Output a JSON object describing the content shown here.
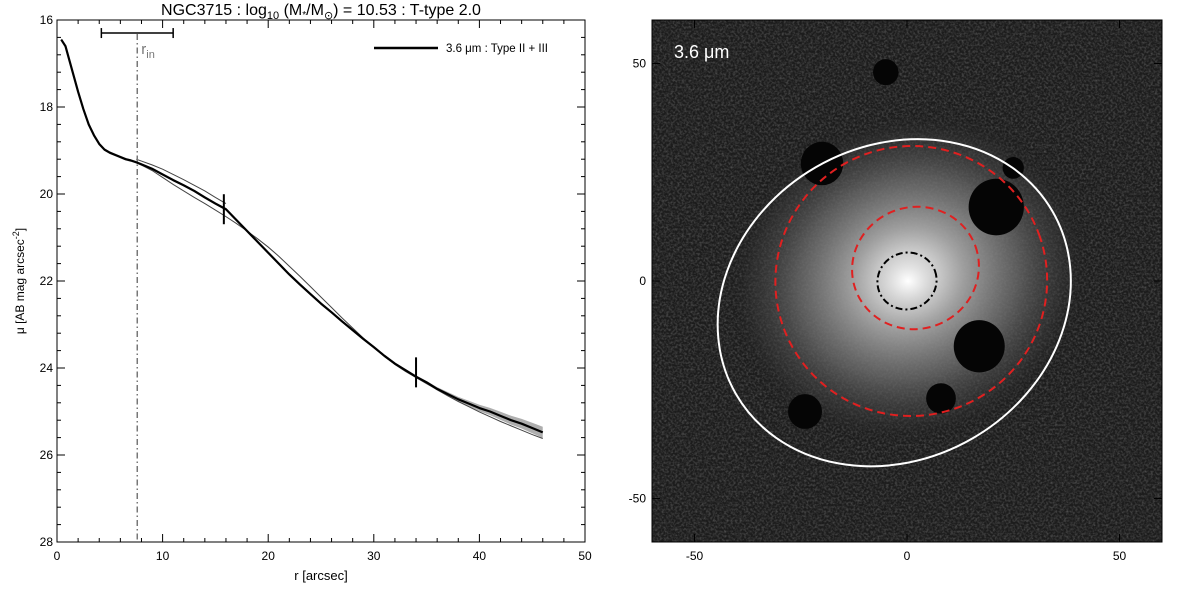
{
  "chart_data": [
    {
      "type": "line",
      "title_parts": [
        "NGC3715 : log",
        "10",
        " (M",
        "*",
        "/M",
        "⊙",
        ") = 10.53 : T-type 2.0"
      ],
      "xlabel": "r [arcsec]",
      "ylabel": "μ [AB mag arcsec",
      "ylabel_sup": "-2",
      "ylabel_end": "]",
      "xlim": [
        0,
        50
      ],
      "ylim": [
        28,
        16
      ],
      "y_inverted": true,
      "grid": false,
      "xticks": [
        0,
        10,
        20,
        30,
        40,
        50
      ],
      "xtick_labels": [
        "0",
        "10",
        "20",
        "30",
        "40",
        "50"
      ],
      "yticks": [
        16,
        18,
        20,
        22,
        24,
        26,
        28
      ],
      "ytick_labels": [
        "16",
        "18",
        "20",
        "22",
        "24",
        "26",
        "28"
      ],
      "legend": {
        "placement": "top-right",
        "label": "3.6 μm : Type II + III"
      },
      "series": [
        {
          "name": "3.6 μm : Type II + III",
          "x": [
            0.4,
            0.8,
            1.2,
            1.6,
            2.0,
            2.5,
            3.0,
            3.5,
            4.0,
            4.5,
            5.0,
            5.5,
            6.0,
            6.5,
            7.0,
            7.5,
            8.0,
            9.0,
            10.0,
            11.0,
            12.0,
            13.0,
            14.0,
            15.0,
            16.0,
            17.0,
            18.0,
            19.0,
            20.0,
            21.0,
            22.0,
            23.0,
            24.0,
            25.0,
            26.0,
            27.0,
            28.0,
            29.0,
            30.0,
            31.0,
            32.0,
            33.0,
            34.0,
            35.0,
            36.0,
            37.0,
            38.0,
            39.0,
            40.0,
            41.0,
            42.0,
            43.0,
            44.0,
            45.0,
            46.0
          ],
          "y": [
            16.45,
            16.6,
            16.95,
            17.3,
            17.65,
            18.05,
            18.4,
            18.65,
            18.85,
            18.98,
            19.05,
            19.1,
            19.15,
            19.2,
            19.23,
            19.27,
            19.32,
            19.42,
            19.55,
            19.68,
            19.8,
            19.93,
            20.08,
            20.22,
            20.35,
            20.6,
            20.85,
            21.1,
            21.35,
            21.6,
            21.85,
            22.08,
            22.3,
            22.52,
            22.72,
            22.93,
            23.13,
            23.33,
            23.52,
            23.72,
            23.9,
            24.05,
            24.2,
            24.33,
            24.48,
            24.6,
            24.72,
            24.82,
            24.92,
            25.0,
            25.1,
            25.2,
            25.28,
            25.38,
            25.48
          ]
        },
        {
          "name": "",
          "x": [
            7.5,
            9.0,
            10.0,
            11.0,
            12.0,
            13.0,
            14.0,
            15.0,
            16.0,
            17.0,
            18.0,
            19.0,
            20.0,
            21.0,
            22.0,
            23.0,
            24.0,
            25.0,
            26.0,
            27.0,
            28.0,
            29.0,
            30.0,
            31.0,
            32.0,
            33.0,
            34.0,
            35.0,
            36.0,
            37.0,
            38.0,
            39.0,
            40.0,
            41.0,
            42.0,
            43.0,
            44.0,
            45.0,
            46.0
          ],
          "y": [
            19.27,
            19.46,
            19.62,
            19.78,
            19.93,
            20.08,
            20.22,
            20.37,
            20.52,
            20.68,
            20.85,
            21.03,
            21.22,
            21.43,
            21.66,
            21.89,
            22.13,
            22.37,
            22.61,
            22.85,
            23.08,
            23.31,
            23.53,
            23.73,
            23.92,
            24.08,
            24.22,
            24.36,
            24.5,
            24.64,
            24.77,
            24.89,
            25.01,
            25.12,
            25.23,
            25.33,
            25.43,
            25.53,
            25.62
          ]
        },
        {
          "name": "",
          "x": [
            7.5,
            9.0,
            10.0,
            11.0,
            12.0,
            13.0,
            14.0,
            15.0,
            16.0
          ],
          "y": [
            19.2,
            19.33,
            19.43,
            19.55,
            19.67,
            19.8,
            19.93,
            20.08,
            20.22
          ]
        }
      ],
      "markers": [
        {
          "type": "vline",
          "x": 7.6,
          "label": "r",
          "label_sub": "in"
        },
        {
          "type": "range_bar",
          "x_from": 4.2,
          "x_to": 11.0,
          "y": 16.3
        },
        {
          "type": "tick",
          "x": 15.8,
          "y": 20.35
        },
        {
          "type": "tick",
          "x": 34.0,
          "y": 24.1
        }
      ]
    },
    {
      "type": "image",
      "band_label": "3.6 μm",
      "xlim": [
        -60,
        60
      ],
      "ylim": [
        -60,
        60
      ],
      "xticks": [
        -50,
        0,
        50
      ],
      "xtick_labels": [
        "-50",
        "0",
        "50"
      ],
      "yticks": [
        50,
        0,
        -50
      ],
      "ytick_labels": [
        "50",
        "0",
        "-50"
      ],
      "colors": {
        "outer_ellipse": "#ffffff",
        "break_ellipses": "#e02020",
        "inner_ellipse": "#000000"
      },
      "ellipses": [
        {
          "name": "outer-ellipse",
          "cx": -3,
          "cy": -5,
          "a": 43,
          "b": 36,
          "angle": 30,
          "style": "solid"
        },
        {
          "name": "break-ellipse-outer",
          "cx": 1,
          "cy": 0,
          "a": 32,
          "b": 31,
          "angle": 20,
          "style": "dashed"
        },
        {
          "name": "break-ellipse-inner",
          "cx": 2,
          "cy": 3,
          "a": 15,
          "b": 14,
          "angle": 20,
          "style": "dashed"
        },
        {
          "name": "inner-ellipse",
          "cx": 0,
          "cy": 0,
          "a": 7,
          "b": 6.5,
          "angle": 20,
          "style": "dash-dot"
        }
      ]
    }
  ]
}
